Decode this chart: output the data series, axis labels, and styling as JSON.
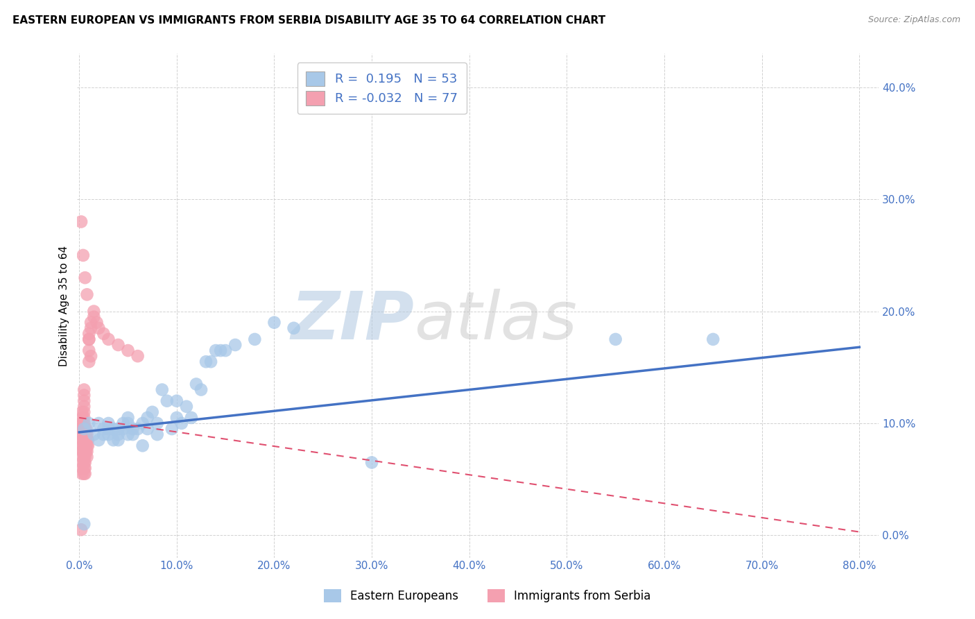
{
  "title": "EASTERN EUROPEAN VS IMMIGRANTS FROM SERBIA DISABILITY AGE 35 TO 64 CORRELATION CHART",
  "source": "Source: ZipAtlas.com",
  "ylabel": "Disability Age 35 to 64",
  "xlim": [
    -0.002,
    0.82
  ],
  "ylim": [
    -0.02,
    0.43
  ],
  "yticks": [
    0.0,
    0.1,
    0.2,
    0.3,
    0.4
  ],
  "ytick_labels": [
    "0.0%",
    "10.0%",
    "20.0%",
    "30.0%",
    "40.0%"
  ],
  "xticks": [
    0.0,
    0.1,
    0.2,
    0.3,
    0.4,
    0.5,
    0.6,
    0.7,
    0.8
  ],
  "xtick_labels": [
    "0.0%",
    "10.0%",
    "20.0%",
    "30.0%",
    "40.0%",
    "50.0%",
    "60.0%",
    "70.0%",
    "80.0%"
  ],
  "blue_color": "#a8c8e8",
  "pink_color": "#f4a0b0",
  "blue_line_color": "#4472c4",
  "pink_line_color": "#e05070",
  "legend_blue_label": "Eastern Europeans",
  "legend_pink_label": "Immigrants from Serbia",
  "R_blue": 0.195,
  "N_blue": 53,
  "R_pink": -0.032,
  "N_pink": 77,
  "blue_scatter_x": [
    0.005,
    0.01,
    0.015,
    0.02,
    0.02,
    0.025,
    0.025,
    0.03,
    0.03,
    0.03,
    0.035,
    0.035,
    0.04,
    0.04,
    0.04,
    0.045,
    0.045,
    0.05,
    0.05,
    0.05,
    0.055,
    0.055,
    0.06,
    0.065,
    0.065,
    0.07,
    0.07,
    0.075,
    0.08,
    0.08,
    0.085,
    0.09,
    0.095,
    0.1,
    0.1,
    0.105,
    0.11,
    0.115,
    0.12,
    0.125,
    0.13,
    0.135,
    0.14,
    0.145,
    0.15,
    0.16,
    0.18,
    0.2,
    0.22,
    0.3,
    0.55,
    0.65,
    0.005
  ],
  "blue_scatter_y": [
    0.095,
    0.1,
    0.09,
    0.085,
    0.1,
    0.09,
    0.095,
    0.09,
    0.095,
    0.1,
    0.085,
    0.095,
    0.085,
    0.09,
    0.095,
    0.095,
    0.1,
    0.09,
    0.1,
    0.105,
    0.09,
    0.095,
    0.095,
    0.08,
    0.1,
    0.095,
    0.105,
    0.11,
    0.09,
    0.1,
    0.13,
    0.12,
    0.095,
    0.105,
    0.12,
    0.1,
    0.115,
    0.105,
    0.135,
    0.13,
    0.155,
    0.155,
    0.165,
    0.165,
    0.165,
    0.17,
    0.175,
    0.19,
    0.185,
    0.065,
    0.175,
    0.175,
    0.01
  ],
  "pink_scatter_x": [
    0.002,
    0.002,
    0.002,
    0.003,
    0.003,
    0.003,
    0.003,
    0.003,
    0.003,
    0.003,
    0.003,
    0.003,
    0.004,
    0.004,
    0.004,
    0.004,
    0.004,
    0.004,
    0.005,
    0.005,
    0.005,
    0.005,
    0.005,
    0.005,
    0.005,
    0.005,
    0.005,
    0.005,
    0.005,
    0.005,
    0.005,
    0.005,
    0.005,
    0.005,
    0.006,
    0.006,
    0.006,
    0.006,
    0.006,
    0.006,
    0.006,
    0.006,
    0.006,
    0.007,
    0.007,
    0.007,
    0.007,
    0.007,
    0.008,
    0.008,
    0.008,
    0.008,
    0.008,
    0.009,
    0.009,
    0.01,
    0.01,
    0.01,
    0.01,
    0.012,
    0.012,
    0.015,
    0.015,
    0.018,
    0.02,
    0.025,
    0.03,
    0.04,
    0.05,
    0.06,
    0.002,
    0.004,
    0.006,
    0.008,
    0.01,
    0.012,
    0.002
  ],
  "pink_scatter_y": [
    0.1,
    0.095,
    0.09,
    0.085,
    0.08,
    0.075,
    0.07,
    0.065,
    0.06,
    0.055,
    0.105,
    0.11,
    0.1,
    0.095,
    0.09,
    0.085,
    0.08,
    0.075,
    0.1,
    0.095,
    0.09,
    0.085,
    0.08,
    0.075,
    0.07,
    0.065,
    0.06,
    0.055,
    0.11,
    0.105,
    0.115,
    0.12,
    0.125,
    0.13,
    0.095,
    0.09,
    0.085,
    0.08,
    0.075,
    0.07,
    0.065,
    0.06,
    0.055,
    0.095,
    0.09,
    0.085,
    0.08,
    0.075,
    0.09,
    0.085,
    0.08,
    0.075,
    0.07,
    0.085,
    0.08,
    0.155,
    0.165,
    0.175,
    0.18,
    0.185,
    0.19,
    0.195,
    0.2,
    0.19,
    0.185,
    0.18,
    0.175,
    0.17,
    0.165,
    0.16,
    0.28,
    0.25,
    0.23,
    0.215,
    0.175,
    0.16,
    0.005
  ],
  "blue_trend_x0": 0.0,
  "blue_trend_x1": 0.8,
  "blue_trend_y0": 0.092,
  "blue_trend_y1": 0.168,
  "pink_trend_x0": 0.0,
  "pink_trend_x1": 0.8,
  "pink_trend_y0": 0.105,
  "pink_trend_y1": 0.003,
  "watermark_zip": "ZIP",
  "watermark_atlas": "atlas",
  "background_color": "#ffffff",
  "grid_color": "#cccccc"
}
